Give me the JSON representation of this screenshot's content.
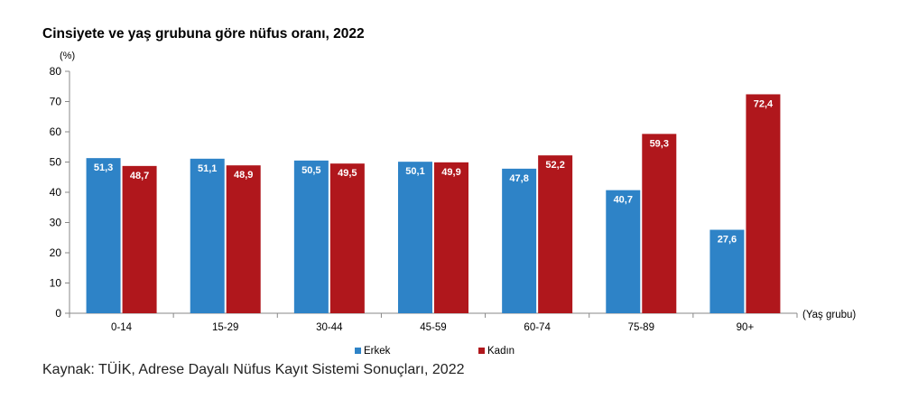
{
  "chart_data": {
    "type": "bar",
    "title": "Cinsiyete ve yaş grubuna göre nüfus oranı, 2022",
    "ylabel": "(%)",
    "xlabel": "(Yaş grubu)",
    "ylim": [
      0,
      80
    ],
    "yticks": [
      0,
      10,
      20,
      30,
      40,
      50,
      60,
      70,
      80
    ],
    "categories": [
      "0-14",
      "15-29",
      "30-44",
      "45-59",
      "60-74",
      "75-89",
      "90+"
    ],
    "series": [
      {
        "name": "Erkek",
        "color": "#2E83C7",
        "values": [
          51.3,
          51.1,
          50.5,
          50.1,
          47.8,
          40.7,
          27.6
        ],
        "labels": [
          "51,3",
          "51,1",
          "50,5",
          "50,1",
          "47,8",
          "40,7",
          "27,6"
        ]
      },
      {
        "name": "Kadın",
        "color": "#B0171C",
        "values": [
          48.7,
          48.9,
          49.5,
          49.9,
          52.2,
          59.3,
          72.4
        ],
        "labels": [
          "48,7",
          "48,9",
          "49,5",
          "49,9",
          "52,2",
          "59,3",
          "72,4"
        ]
      }
    ],
    "legend_position": "bottom-center",
    "grid": false
  },
  "source_text": "Kaynak: TÜİK, Adrese Dayalı Nüfus Kayıt Sistemi Sonuçları, 2022"
}
